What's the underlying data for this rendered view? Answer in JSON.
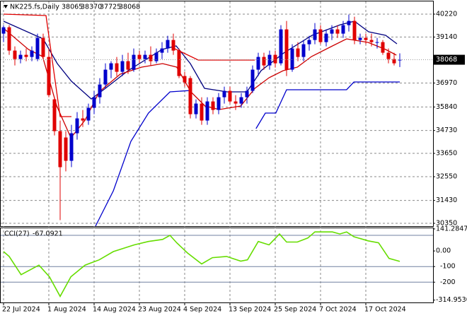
{
  "chart_data": [
    {
      "type": "candlestick",
      "title": "NK225.fs,Daily",
      "categories": [
        "22 Jul 2024",
        null,
        null,
        null,
        null,
        null,
        null,
        null,
        "1 Aug 2024",
        null,
        null,
        null,
        null,
        null,
        null,
        null,
        "14 Aug 2024",
        null,
        null,
        null,
        null,
        null,
        null,
        null,
        "23 Aug 2024",
        null,
        null,
        null,
        null,
        null,
        null,
        null,
        "4 Sep 2024",
        null,
        null,
        null,
        null,
        null,
        null,
        null,
        "13 Sep 2024",
        null,
        null,
        null,
        null,
        null,
        null,
        null,
        "25 Sep 2024",
        null,
        null,
        null,
        null,
        null,
        null,
        null,
        "7 Oct 2024",
        null,
        null,
        null,
        null,
        null,
        null,
        null,
        "17 Oct 2024",
        null,
        null,
        null,
        null,
        null,
        null
      ],
      "open": [
        39300,
        39600,
        38500,
        38100,
        38300,
        38200,
        38100,
        39100,
        38200,
        36200,
        34700,
        34400,
        33300,
        34600,
        35300,
        35200,
        35800,
        36300,
        36900,
        37600,
        37900,
        37500,
        38000,
        37600,
        38300,
        38100,
        38300,
        38000,
        38400,
        38600,
        39000,
        38500,
        37300,
        37200,
        35500,
        36000,
        35200,
        36100,
        35700,
        36300,
        36600,
        36100,
        36000,
        36300,
        36600,
        37600,
        38200,
        37800,
        38300,
        37900,
        39500,
        37600,
        38600,
        38200,
        38800,
        39000,
        39500,
        38900,
        39300,
        39500,
        39300,
        39700,
        39900,
        39000,
        39100,
        39000,
        38900,
        38900,
        38400,
        38100,
        38065
      ],
      "high": [
        39700,
        39700,
        38700,
        38500,
        38600,
        38700,
        39300,
        39300,
        38600,
        36300,
        35200,
        34700,
        35000,
        35600,
        35700,
        36000,
        36600,
        37200,
        37900,
        38000,
        38200,
        38300,
        38400,
        38600,
        38500,
        38500,
        38700,
        38600,
        38900,
        39200,
        39300,
        38600,
        37500,
        37300,
        36200,
        36300,
        36300,
        36300,
        36500,
        36800,
        36800,
        36400,
        36500,
        36800,
        37800,
        38400,
        38400,
        38500,
        38500,
        39700,
        39900,
        38800,
        38900,
        39000,
        39200,
        39800,
        39700,
        39500,
        39700,
        39700,
        39900,
        40200,
        40100,
        39300,
        39300,
        39300,
        39100,
        39000,
        38600,
        38400,
        38370
      ],
      "low": [
        38900,
        38300,
        37800,
        37900,
        38000,
        38000,
        38000,
        38100,
        36300,
        34500,
        30500,
        32800,
        33000,
        34300,
        34900,
        35000,
        35500,
        36000,
        36700,
        37200,
        37300,
        37300,
        37400,
        37500,
        37900,
        37900,
        37800,
        37900,
        38100,
        38400,
        38300,
        37200,
        36800,
        35300,
        35300,
        35000,
        35000,
        35500,
        35500,
        36000,
        36000,
        35700,
        35800,
        36000,
        36500,
        37300,
        37600,
        37600,
        37700,
        37800,
        37300,
        37500,
        38000,
        38000,
        38500,
        38800,
        38800,
        38700,
        39000,
        39100,
        39100,
        39400,
        38800,
        38800,
        38800,
        38700,
        38600,
        38300,
        37900,
        37800,
        37725
      ],
      "close": [
        39600,
        38500,
        38100,
        38300,
        38200,
        38500,
        39100,
        38200,
        36400,
        34700,
        33000,
        33300,
        34600,
        35300,
        35200,
        35800,
        36300,
        36900,
        37600,
        37900,
        37500,
        38000,
        37600,
        38300,
        38100,
        38300,
        38000,
        38400,
        38600,
        39000,
        38500,
        37300,
        37000,
        35500,
        36000,
        35200,
        36100,
        35700,
        36300,
        36600,
        36100,
        36000,
        36300,
        36600,
        37600,
        38200,
        37800,
        38300,
        37900,
        39500,
        37600,
        38600,
        38200,
        38800,
        39000,
        39500,
        38900,
        39300,
        39500,
        39300,
        39700,
        39900,
        39000,
        39100,
        39000,
        38900,
        38900,
        38400,
        38100,
        37900,
        38068
      ],
      "up_color": "#0000cc",
      "down_color": "#e00000",
      "overlays": [
        {
          "color": "#000080",
          "x": [
            0,
            7,
            9.5,
            12,
            15.5,
            18,
            22,
            28,
            30.5,
            33,
            35.5,
            39.5,
            43,
            45.5,
            49.5,
            54.5,
            59.5,
            62,
            64.5,
            67.5,
            69.5
          ],
          "values": [
            39887,
            39053,
            37886,
            37053,
            36219,
            36720,
            37553,
            38553,
            38720,
            37886,
            36720,
            36553,
            36553,
            37553,
            38386,
            39220,
            39720,
            39887,
            39387,
            39220,
            38820
          ]
        },
        {
          "color": "#cc0000",
          "x": [
            0,
            4.4,
            6.9,
            9.4,
            11.9,
            14.4,
            16.9,
            20.6,
            24.4,
            28.1,
            30.6,
            33.1,
            35.6,
            38.1,
            41.9,
            44.4,
            46.9,
            49.4,
            51.9,
            54.4,
            58.1,
            60.6,
            64.4,
            67.5,
            69.4
          ],
          "values": [
            39553,
            38553,
            38220,
            35886,
            34386,
            35219,
            36553,
            37386,
            37720,
            37886,
            37720,
            36553,
            35886,
            35719,
            35886,
            36719,
            37219,
            37553,
            37720,
            38220,
            38720,
            39053,
            38886,
            38553,
            38287
          ]
        },
        {
          "color": "#e00000",
          "x": [
            0,
            7.5,
            10,
            12,
            20,
            30,
            34.4,
            44.4
          ],
          "values": [
            40220,
            40153,
            35386,
            35386,
            null,
            38620,
            38053,
            38053
          ]
        },
        {
          "color": "#0000cc",
          "x": [
            16.25,
            19.4,
            22.5,
            25.6,
            29.4,
            33.1,
            40,
            44.6,
            46.25,
            48.1,
            50,
            60.6,
            61.9,
            70
          ],
          "values": [
            30218,
            31885,
            34219,
            35552,
            36553,
            36619,
            null,
            34819,
            35552,
            35552,
            36653,
            36653,
            37019,
            37019
          ]
        }
      ],
      "ylim": [
        30218,
        40820
      ],
      "yticks": [
        40220,
        39140,
        36970,
        35840,
        34730,
        33650,
        32550,
        31430,
        30350
      ],
      "grid": true
    },
    {
      "type": "line",
      "name": "CCI(27)",
      "color": "#66dd00",
      "x": [
        0,
        1,
        3.1,
        6.25,
        8.1,
        10,
        11.9,
        14.4,
        16.9,
        19.4,
        23.1,
        25.6,
        28.1,
        29.4,
        30.6,
        32.5,
        35,
        36.9,
        39.4,
        41.9,
        43.1,
        45,
        46.9,
        48.75,
        50,
        51.9,
        53.75,
        55,
        58.1,
        59.4,
        60.6,
        61.9,
        64.4,
        66.25,
        68.1,
        70
      ],
      "values": [
        -4,
        -35,
        -152,
        -91,
        -165,
        -291,
        -165,
        -91,
        -57,
        -4,
        39,
        61,
        74,
        100,
        52,
        -13,
        -83,
        -43,
        -35,
        -65,
        -57,
        61,
        39,
        109,
        57,
        57,
        83,
        122,
        122,
        109,
        122,
        91,
        65,
        52,
        -48,
        -67.0921
      ],
      "levels": [
        100,
        -100,
        -200
      ],
      "level_color": "#7080a0",
      "ylim": [
        -330,
        150
      ],
      "yticks": [
        141.2847,
        {
          "value": 0,
          "label": "0.00"
        },
        -100,
        -200,
        {
          "value": -314.953,
          "label": "-314.9530"
        }
      ]
    }
  ]
}
